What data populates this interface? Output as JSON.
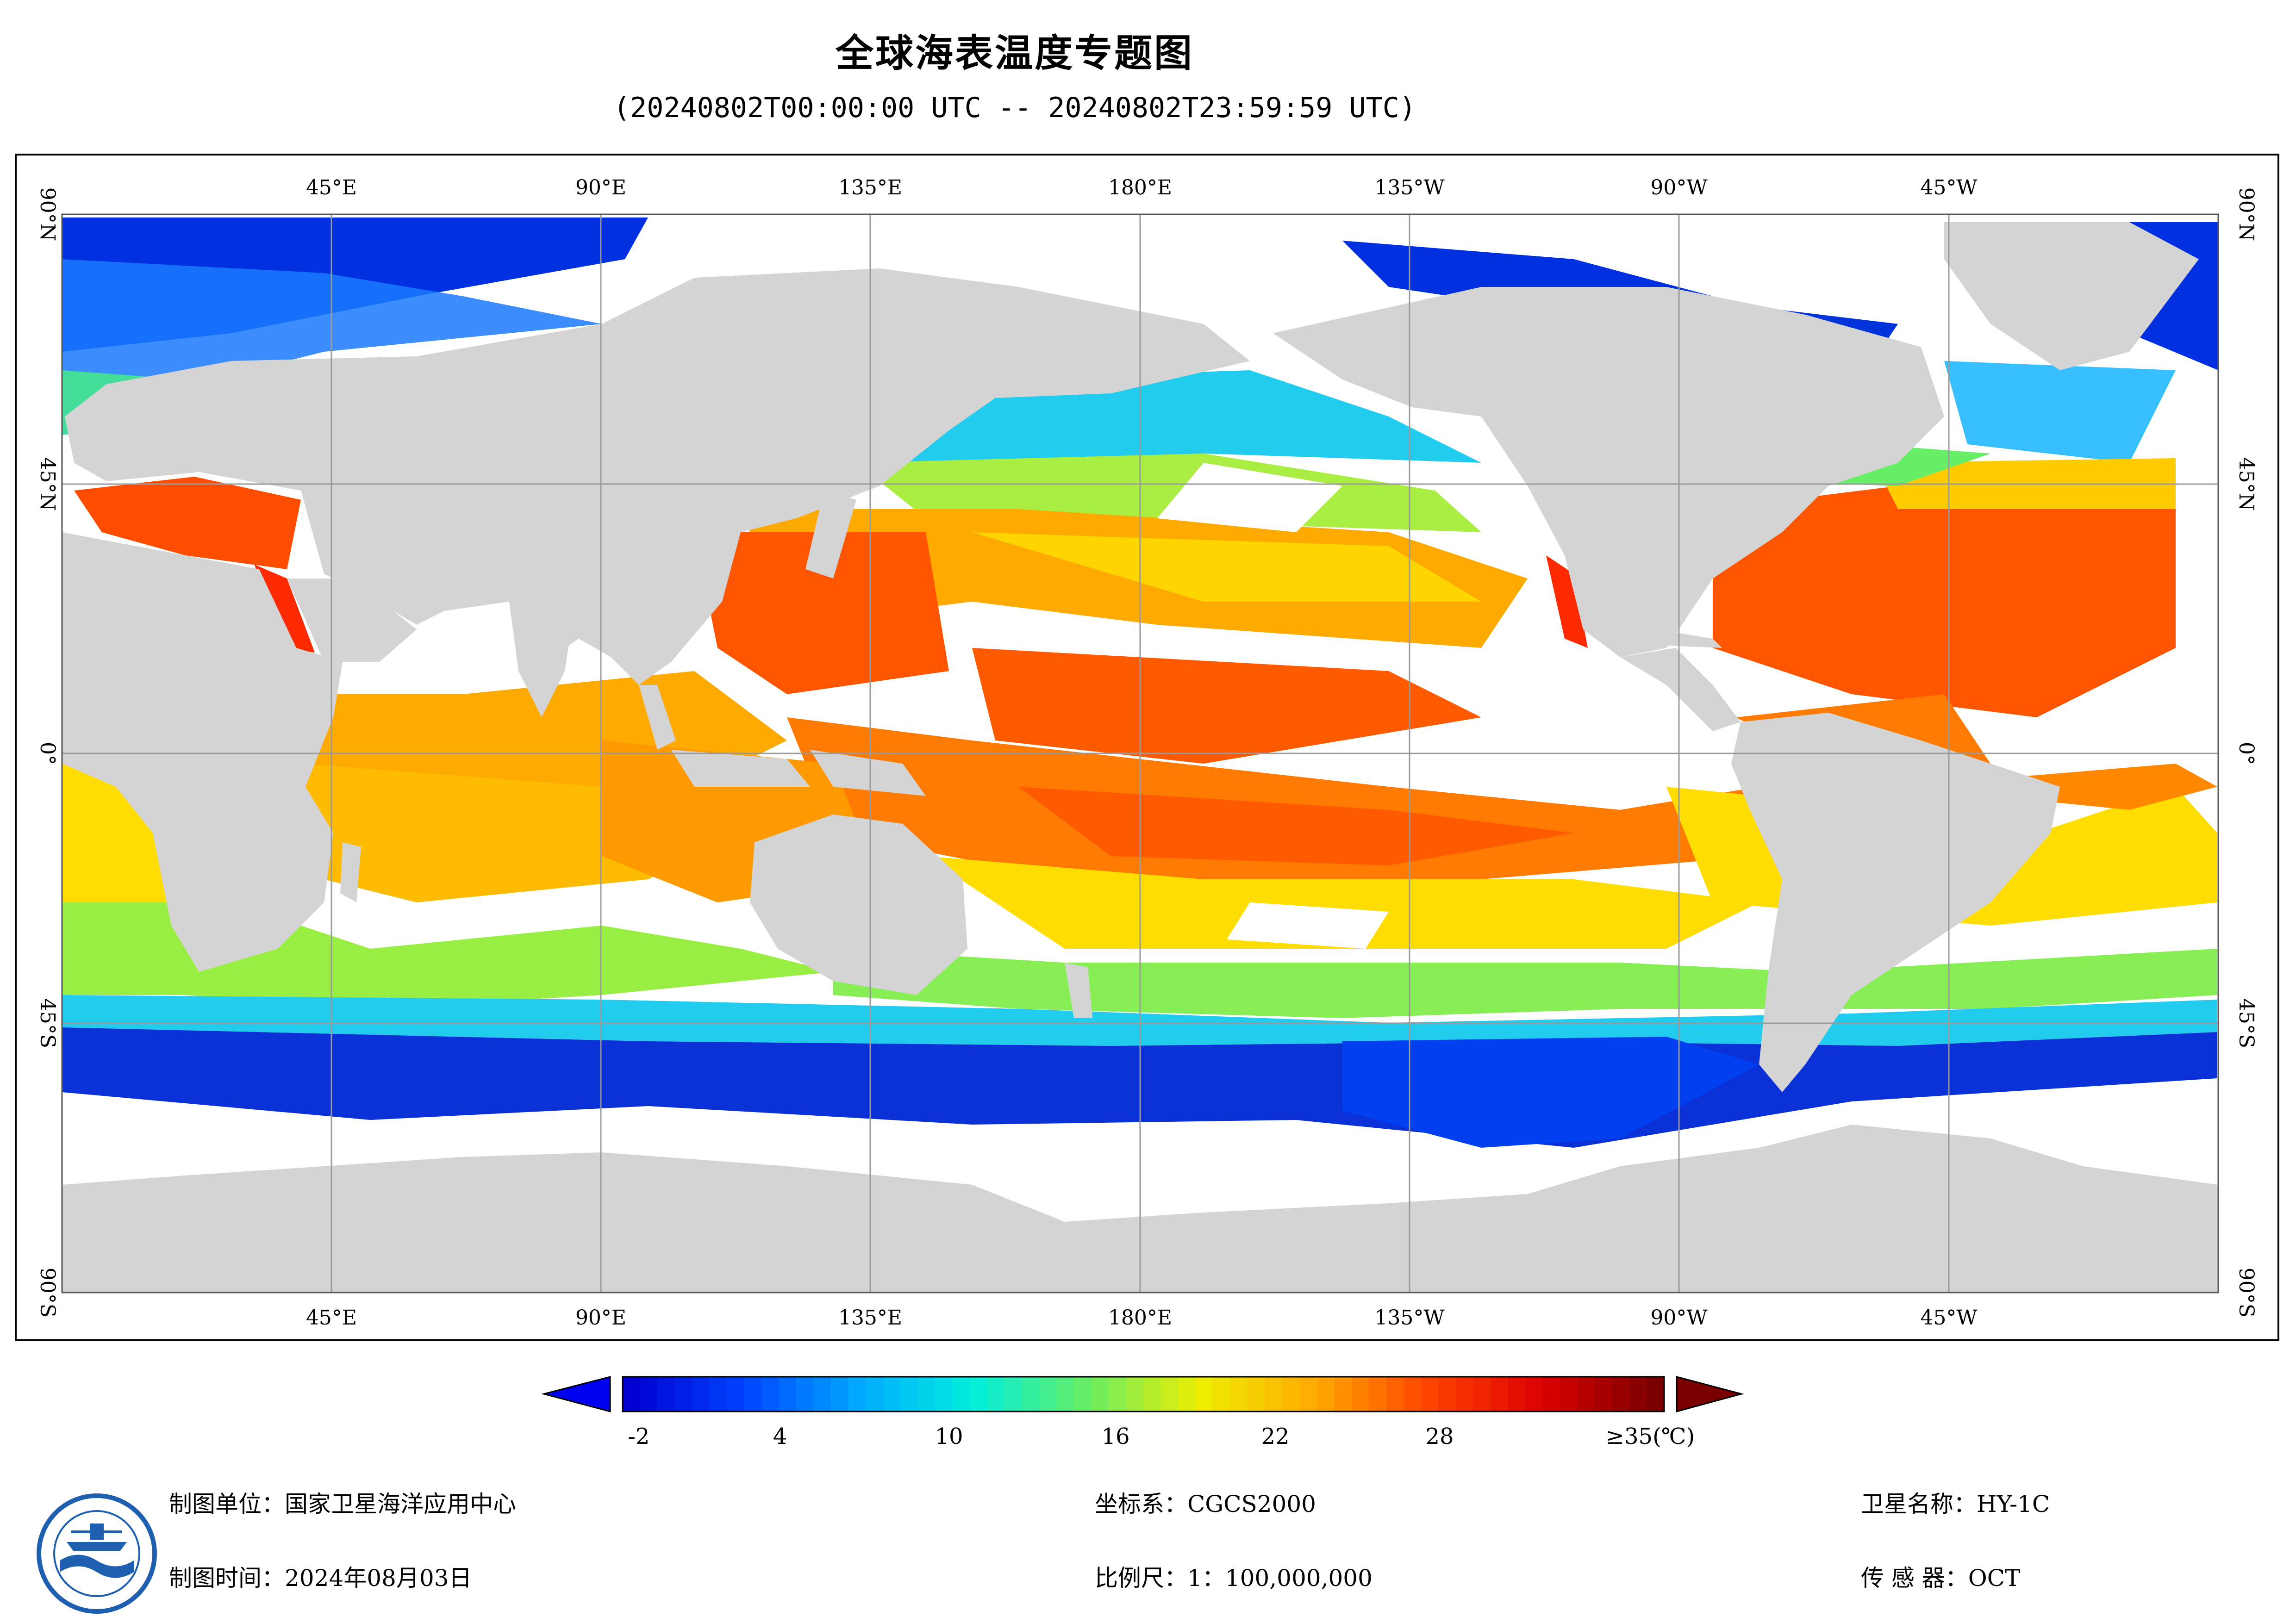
{
  "title": "全球海表温度专题图",
  "subtitle": "(20240802T00:00:00 UTC -- 20240802T23:59:59 UTC)",
  "map": {
    "lon_labels": [
      "45°E",
      "90°E",
      "135°E",
      "180°E",
      "135°W",
      "90°W",
      "45°W"
    ],
    "lat_labels": [
      "90°N",
      "45°N",
      "0°",
      "45°S",
      "90°S"
    ],
    "colors": {
      "land": "#d4d4d4",
      "no_data": "#ffffff",
      "grid": "#9a9a9a"
    }
  },
  "colorbar": {
    "tick_labels": [
      "-2",
      "4",
      "10",
      "16",
      "22",
      "28",
      "≥35(℃)"
    ],
    "min": -2,
    "max": 35,
    "unit": "℃",
    "colors": [
      "#0000d0",
      "#0044ff",
      "#00aaff",
      "#00eedd",
      "#66ee66",
      "#eeee00",
      "#ffaa00",
      "#ff4400",
      "#dd0000",
      "#7a0000"
    ]
  },
  "footer": {
    "producer": "制图单位：国家卫星海洋应用中心",
    "date": "制图时间：2024年08月03日",
    "coord_system": "坐标系：CGCS2000",
    "scale": "比例尺：1：100,000,000",
    "satellite": "卫星名称：HY-1C",
    "sensor": "传 感 器：OCT"
  }
}
